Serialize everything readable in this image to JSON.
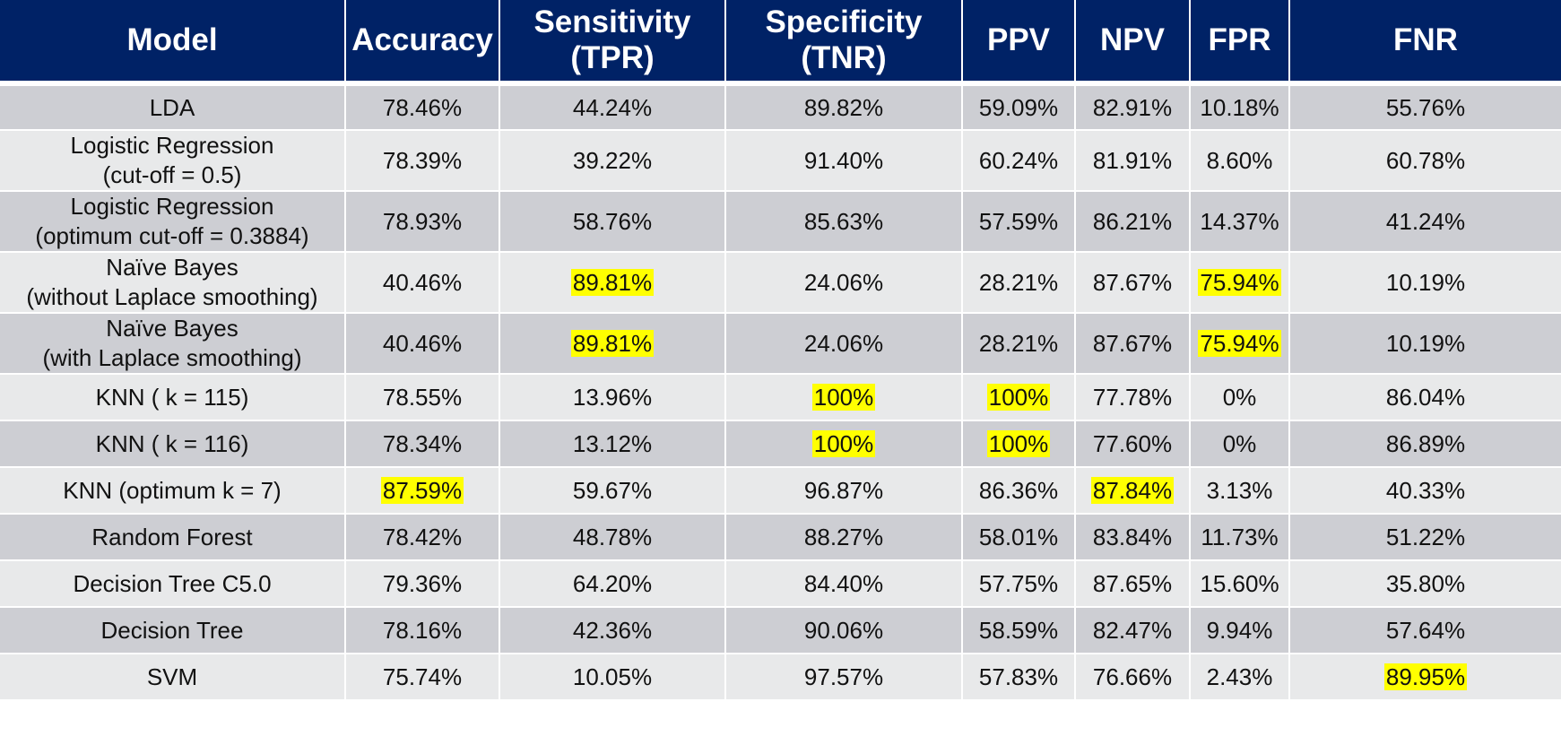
{
  "table": {
    "columns": [
      "Model",
      "Accuracy",
      "Sensitivity\n(TPR)",
      "Specificity\n(TNR)",
      "PPV",
      "NPV",
      "FPR",
      "FNR"
    ],
    "rows": [
      {
        "model": "LDA",
        "cells": [
          "78.46%",
          "44.24%",
          "89.82%",
          "59.09%",
          "82.91%",
          "10.18%",
          "55.76%"
        ],
        "highlight": []
      },
      {
        "model": "Logistic Regression\n(cut-off = 0.5)",
        "cells": [
          "78.39%",
          "39.22%",
          "91.40%",
          "60.24%",
          "81.91%",
          "8.60%",
          "60.78%"
        ],
        "highlight": []
      },
      {
        "model": "Logistic Regression\n(optimum cut-off = 0.3884)",
        "cells": [
          "78.93%",
          "58.76%",
          "85.63%",
          "57.59%",
          "86.21%",
          "14.37%",
          "41.24%"
        ],
        "highlight": []
      },
      {
        "model": "Naïve Bayes\n(without Laplace smoothing)",
        "cells": [
          "40.46%",
          "89.81%",
          "24.06%",
          "28.21%",
          "87.67%",
          "75.94%",
          "10.19%"
        ],
        "highlight": [
          1,
          5
        ]
      },
      {
        "model": "Naïve Bayes\n(with Laplace smoothing)",
        "cells": [
          "40.46%",
          "89.81%",
          "24.06%",
          "28.21%",
          "87.67%",
          "75.94%",
          "10.19%"
        ],
        "highlight": [
          1,
          5
        ]
      },
      {
        "model": "KNN ( k = 115)",
        "cells": [
          "78.55%",
          "13.96%",
          "100%",
          "100%",
          "77.78%",
          "0%",
          "86.04%"
        ],
        "highlight": [
          2,
          3
        ]
      },
      {
        "model": "KNN ( k = 116)",
        "cells": [
          "78.34%",
          "13.12%",
          "100%",
          "100%",
          "77.60%",
          "0%",
          "86.89%"
        ],
        "highlight": [
          2,
          3
        ]
      },
      {
        "model": "KNN (optimum k = 7)",
        "cells": [
          "87.59%",
          "59.67%",
          "96.87%",
          "86.36%",
          "87.84%",
          "3.13%",
          "40.33%"
        ],
        "highlight": [
          0,
          4
        ]
      },
      {
        "model": "Random Forest",
        "cells": [
          "78.42%",
          "48.78%",
          "88.27%",
          "58.01%",
          "83.84%",
          "11.73%",
          "51.22%"
        ],
        "highlight": []
      },
      {
        "model": "Decision Tree C5.0",
        "cells": [
          "79.36%",
          "64.20%",
          "84.40%",
          "57.75%",
          "87.65%",
          "15.60%",
          "35.80%"
        ],
        "highlight": []
      },
      {
        "model": "Decision Tree",
        "cells": [
          "78.16%",
          "42.36%",
          "90.06%",
          "58.59%",
          "82.47%",
          "9.94%",
          "57.64%"
        ],
        "highlight": []
      },
      {
        "model": "SVM",
        "cells": [
          "75.74%",
          "10.05%",
          "97.57%",
          "57.83%",
          "76.66%",
          "2.43%",
          "89.95%"
        ],
        "highlight": [
          6
        ]
      }
    ]
  },
  "colors": {
    "header_bg": "#002266",
    "header_text": "#ffffff",
    "row_dark": "#cdced3",
    "row_light": "#e8e9ea",
    "highlight": "#ffff00"
  }
}
